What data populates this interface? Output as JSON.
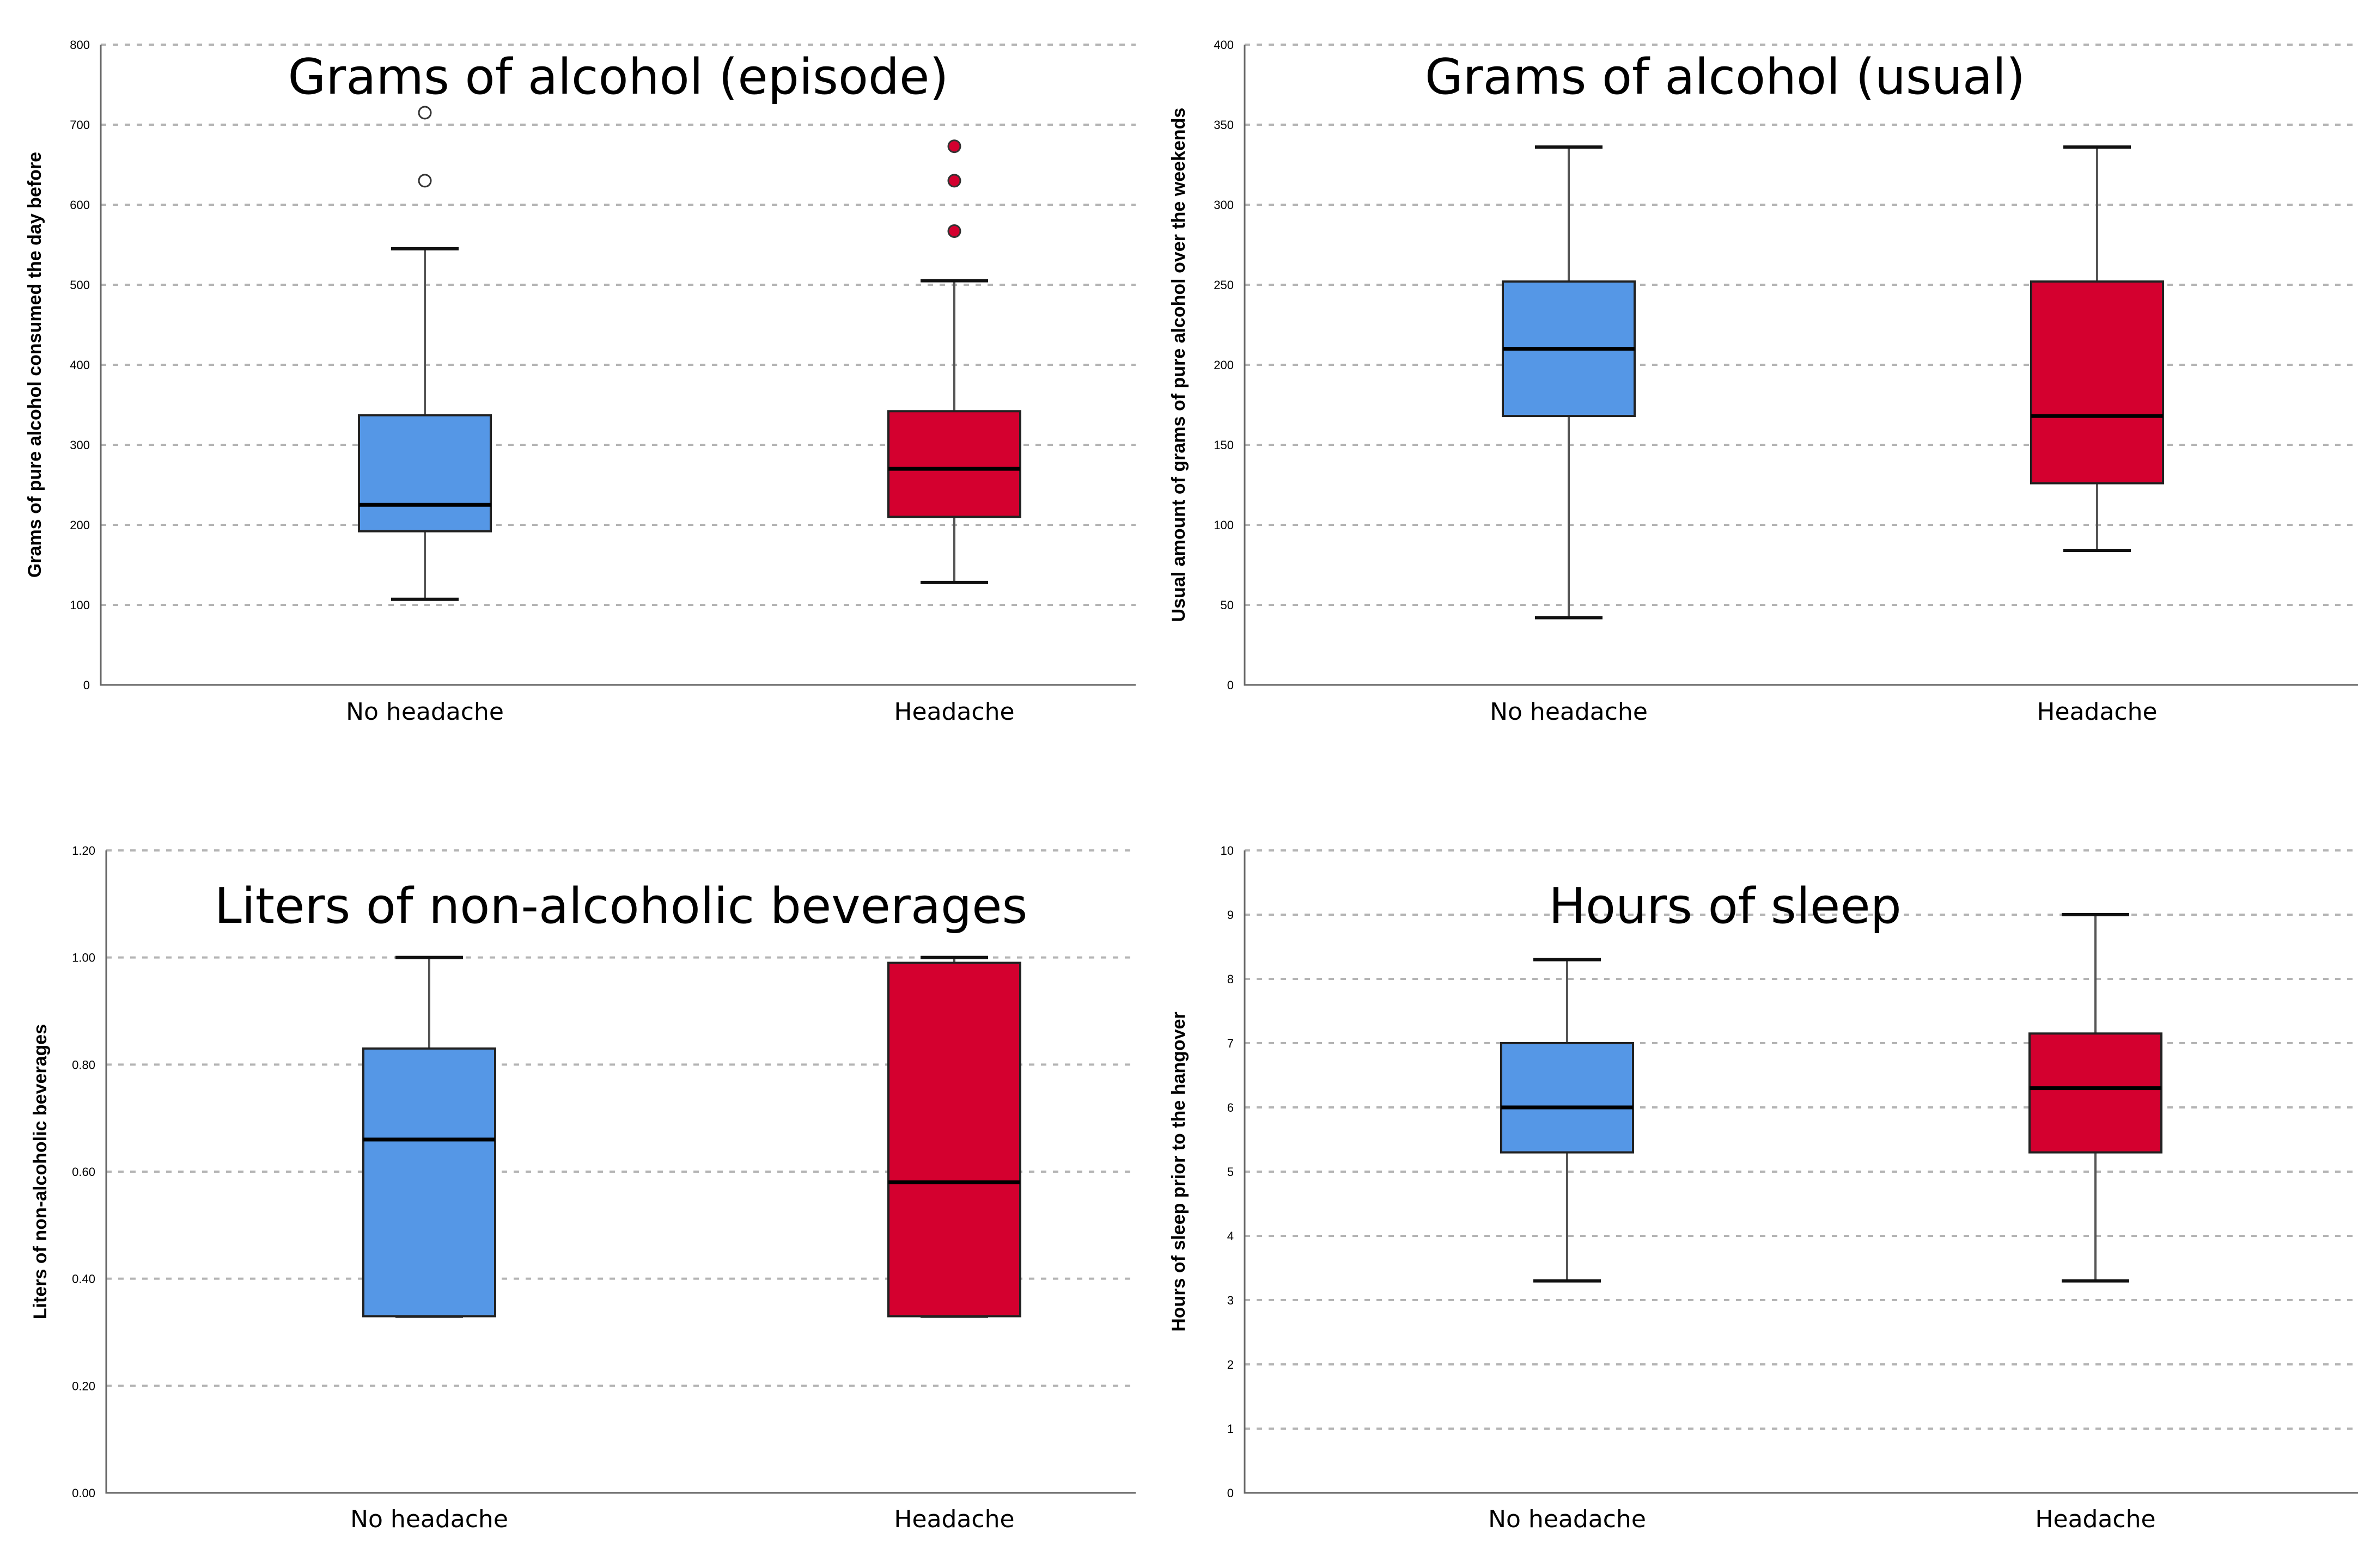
{
  "colors": {
    "no_headache": "#5597E6",
    "headache": "#D4002F"
  },
  "chart_data": [
    {
      "type": "box",
      "title": "Grams of alcohol (episode)",
      "ylabel": "Grams of pure alcohol consumed the day before",
      "xlabel": "",
      "ylim": [
        0,
        800
      ],
      "yticks": [
        "0",
        "100",
        "200",
        "300",
        "400",
        "500",
        "600",
        "700",
        "800"
      ],
      "categories": [
        "No headache",
        "Headache"
      ],
      "boxes": [
        {
          "name": "No headache",
          "min": 107,
          "q1": 192,
          "median": 225,
          "q3": 337,
          "max": 545,
          "outliers": [
            630,
            715
          ],
          "outlier_style": "hollow"
        },
        {
          "name": "Headache",
          "min": 128,
          "q1": 210,
          "median": 270,
          "q3": 342,
          "max": 505,
          "outliers": [
            567,
            630,
            673
          ],
          "outlier_style": "filled"
        }
      ]
    },
    {
      "type": "box",
      "title": "Grams of alcohol (usual)",
      "ylabel": "Usual amount of grams of pure alcohol over the weekends",
      "xlabel": "",
      "ylim": [
        0,
        400
      ],
      "yticks": [
        "0",
        "50",
        "100",
        "150",
        "200",
        "250",
        "300",
        "350",
        "400"
      ],
      "categories": [
        "No headache",
        "Headache"
      ],
      "boxes": [
        {
          "name": "No headache",
          "min": 42,
          "q1": 168,
          "median": 210,
          "q3": 252,
          "max": 336,
          "outliers": []
        },
        {
          "name": "Headache",
          "min": 84,
          "q1": 126,
          "median": 168,
          "q3": 252,
          "max": 336,
          "outliers": []
        }
      ]
    },
    {
      "type": "box",
      "title": "Liters of non-alcoholic beverages",
      "ylabel": "Liters of non-alcoholic beverages",
      "xlabel": "",
      "ylim": [
        0,
        1.2
      ],
      "yticks": [
        "0.00",
        "0.20",
        "0.40",
        "0.60",
        "0.80",
        "1.00",
        "1.20"
      ],
      "categories": [
        "No headache",
        "Headache"
      ],
      "boxes": [
        {
          "name": "No headache",
          "min": 0.33,
          "q1": 0.33,
          "median": 0.66,
          "q3": 0.83,
          "max": 1.0,
          "outliers": []
        },
        {
          "name": "Headache",
          "min": 0.33,
          "q1": 0.33,
          "median": 0.58,
          "q3": 0.99,
          "max": 1.0,
          "outliers": []
        }
      ]
    },
    {
      "type": "box",
      "title": "Hours of sleep",
      "ylabel": "Hours of sleep prior to the hangover",
      "xlabel": "",
      "ylim": [
        0,
        10
      ],
      "yticks": [
        "0",
        "1",
        "2",
        "3",
        "4",
        "5",
        "6",
        "7",
        "8",
        "9",
        "10"
      ],
      "categories": [
        "No headache",
        "Headache"
      ],
      "boxes": [
        {
          "name": "No headache",
          "min": 3.3,
          "q1": 5.3,
          "median": 6.0,
          "q3": 7.0,
          "max": 8.3,
          "outliers": []
        },
        {
          "name": "Headache",
          "min": 3.3,
          "q1": 5.3,
          "median": 6.3,
          "q3": 7.15,
          "max": 9.0,
          "outliers": []
        }
      ]
    }
  ]
}
